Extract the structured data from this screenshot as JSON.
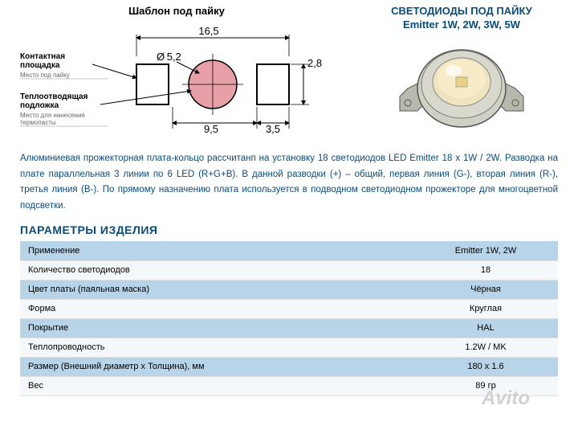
{
  "diagram": {
    "title": "Шаблон под пайку",
    "labels": {
      "contact_pad": "Контактная\nплощадка",
      "contact_sub": "Место под пайку",
      "heat_pad": "Теплоотводящая\nподложка",
      "heat_sub": "Место для нанесения\nтермопасты"
    },
    "dims": {
      "width": "16,5",
      "diameter": "Ø 5,2",
      "gap": "9,5",
      "pad_w": "3,5",
      "pad_h": "2,8"
    },
    "colors": {
      "circle_fill": "#e8a0a8",
      "circle_stroke": "#000",
      "pad_stroke": "#000",
      "dim_line": "#000",
      "arrow": "#000"
    }
  },
  "right_block": {
    "line1": "СВЕТОДИОДЫ ПОД ПАЙКУ",
    "line2": "Emitter  1W, 2W, 3W, 5W"
  },
  "description": "Алюминиевая прожекторная плата-кольцо рассчитанп на установку 18 светодиодов LED Emitter 18 x 1W / 2W. Разводка на плате параллельная 3 линии по 6 LED (R+G+B). В данной разводки (+) – общий, первая линия (G-), вторая линия (R-), третья линия (B-). По прямому назначению плата используется в подводном светодиодном прожекторе для многоцветной подсветки.",
  "section_title": "ПАРАМЕТРЫ ИЗДЕЛИЯ",
  "params": [
    {
      "k": "Применение",
      "v": "Emitter 1W, 2W"
    },
    {
      "k": "Количество светодиодов",
      "v": "18"
    },
    {
      "k": "Цвет платы (паяльная маска)",
      "v": "Чёрная"
    },
    {
      "k": "Форма",
      "v": "Круглая"
    },
    {
      "k": "Покрытие",
      "v": "HAL"
    },
    {
      "k": "Теплопроводность",
      "v": "1.2W / MK"
    },
    {
      "k": "Размер (Внешний диаметр х Толщина), мм",
      "v": "180 x 1.6"
    },
    {
      "k": "Вес",
      "v": "89 гр"
    }
  ],
  "watermark": "Avito"
}
